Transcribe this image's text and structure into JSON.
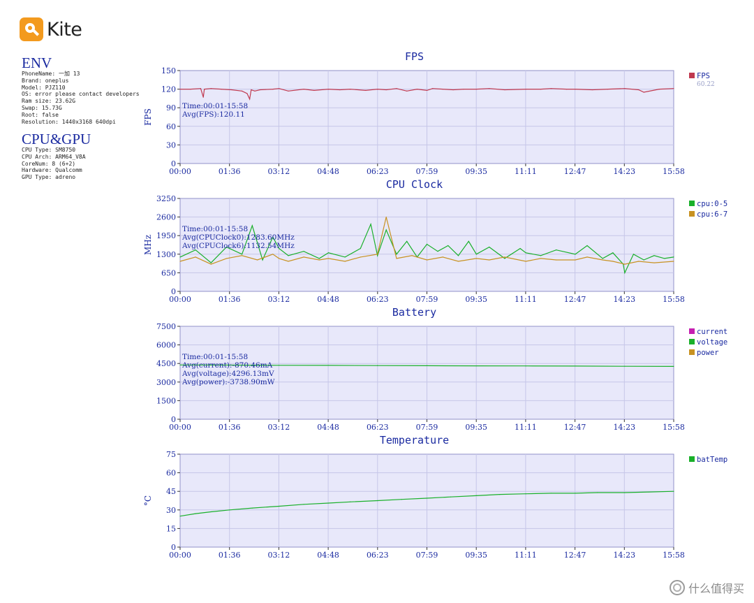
{
  "app": {
    "logo_text": "Kite"
  },
  "env": {
    "title": "ENV",
    "rows": [
      {
        "k": "PhoneName: ",
        "v": "一加 13"
      },
      {
        "k": "Brand: ",
        "v": "oneplus"
      },
      {
        "k": "Model: ",
        "v": "PJZ110"
      },
      {
        "k": "OS: ",
        "v": "error please contact developers"
      },
      {
        "k": "Ram size: ",
        "v": "23.62G"
      },
      {
        "k": "Swap: ",
        "v": "15.73G"
      },
      {
        "k": "Root: ",
        "v": "false"
      },
      {
        "k": "Resolution: ",
        "v": "1440x3168 640dpi"
      }
    ]
  },
  "cpu_gpu": {
    "title": "CPU&GPU",
    "rows": [
      {
        "k": "CPU Type: ",
        "v": "SM8750"
      },
      {
        "k": "CPU Arch: ",
        "v": "ARM64_V8A"
      },
      {
        "k": "CoreNum: ",
        "v": "8 (6+2)"
      },
      {
        "k": "Hardware: ",
        "v": "Qualcomm"
      },
      {
        "k": "GPU Type: ",
        "v": "adreno"
      }
    ]
  },
  "watermark": {
    "text": "什么值得买"
  },
  "colors": {
    "axis_text": "#1a2aa0",
    "plot_bg": "#e8e8fa",
    "grid": "#c6c6e8",
    "fps": "#c0394f",
    "cpu0": "#19b02a",
    "cpu6": "#c89222",
    "current": "#c51fb1",
    "voltage": "#19b02a",
    "power": "#c89222",
    "temp": "#19b02a"
  },
  "chart_data": [
    {
      "type": "line",
      "title": "FPS",
      "ylabel": "FPS",
      "ylim": [
        0,
        150
      ],
      "yticks": [
        "0",
        "30",
        "60",
        "90",
        "120",
        "150"
      ],
      "xticks": [
        "00:00",
        "01:36",
        "03:12",
        "04:48",
        "06:23",
        "07:59",
        "09:35",
        "11:11",
        "12:47",
        "14:23",
        "15:58"
      ],
      "grid": true,
      "legend_position": "right",
      "legend": [
        {
          "name": "FPS",
          "sub": "60.22",
          "color": "#c0394f"
        }
      ],
      "annotations": [
        "Time:00:01-15:58",
        "Avg(FPS):120.11"
      ],
      "series": [
        {
          "name": "FPS",
          "color": "#c0394f",
          "x": [
            "00:00",
            "00:20",
            "00:40",
            "00:45",
            "00:47",
            "01:00",
            "01:20",
            "01:40",
            "02:00",
            "02:10",
            "02:15",
            "02:18",
            "02:25",
            "02:35",
            "03:00",
            "03:12",
            "03:30",
            "04:00",
            "04:20",
            "04:48",
            "05:10",
            "05:30",
            "06:00",
            "06:23",
            "06:40",
            "07:00",
            "07:20",
            "07:40",
            "07:59",
            "08:10",
            "08:30",
            "08:50",
            "09:10",
            "09:35",
            "10:00",
            "10:30",
            "11:11",
            "11:40",
            "12:00",
            "12:30",
            "12:47",
            "13:20",
            "13:50",
            "14:23",
            "14:50",
            "15:00",
            "15:30",
            "15:58"
          ],
          "y": [
            120,
            120,
            121,
            107,
            120,
            121,
            120,
            119,
            117,
            113,
            104,
            119,
            117,
            119,
            120,
            121,
            117,
            120,
            118,
            120,
            119,
            120,
            118,
            120,
            119,
            121,
            117,
            120,
            118,
            121,
            120,
            119,
            120,
            120,
            121,
            119,
            120,
            120,
            121,
            120,
            120,
            119,
            120,
            121,
            119,
            115,
            120,
            121
          ]
        }
      ]
    },
    {
      "type": "line",
      "title": "CPU Clock",
      "ylabel": "MHz",
      "ylim": [
        0,
        3250
      ],
      "yticks": [
        "0",
        "650",
        "1300",
        "1950",
        "2600",
        "3250"
      ],
      "xticks": [
        "00:00",
        "01:36",
        "03:12",
        "04:48",
        "06:23",
        "07:59",
        "09:35",
        "11:11",
        "12:47",
        "14:23",
        "15:58"
      ],
      "grid": true,
      "legend_position": "right",
      "legend": [
        {
          "name": "cpu:0-5",
          "color": "#19b02a"
        },
        {
          "name": "cpu:6-7",
          "color": "#c89222"
        }
      ],
      "annotations": [
        "Time:00:01-15:58",
        "Avg(CPUClock0):1283.60MHz",
        "Avg(CPUClock6):1132.54MHz"
      ],
      "series": [
        {
          "name": "cpu:0-5",
          "color": "#19b02a",
          "x": [
            "00:00",
            "00:30",
            "01:00",
            "01:30",
            "02:00",
            "02:20",
            "02:40",
            "03:00",
            "03:12",
            "03:30",
            "04:00",
            "04:30",
            "04:48",
            "05:20",
            "05:50",
            "06:10",
            "06:23",
            "06:40",
            "07:00",
            "07:20",
            "07:40",
            "07:59",
            "08:20",
            "08:40",
            "09:00",
            "09:20",
            "09:35",
            "10:00",
            "10:30",
            "11:00",
            "11:11",
            "11:40",
            "12:10",
            "12:47",
            "13:10",
            "13:40",
            "14:00",
            "14:20",
            "14:23",
            "14:40",
            "15:00",
            "15:20",
            "15:40",
            "15:58"
          ],
          "y": [
            1200,
            1450,
            1000,
            1550,
            1300,
            2300,
            1100,
            1900,
            1500,
            1250,
            1400,
            1150,
            1350,
            1200,
            1500,
            2350,
            1250,
            2150,
            1300,
            1750,
            1200,
            1650,
            1400,
            1600,
            1250,
            1750,
            1300,
            1550,
            1150,
            1500,
            1350,
            1250,
            1450,
            1300,
            1600,
            1150,
            1350,
            950,
            650,
            1300,
            1100,
            1250,
            1150,
            1200
          ]
        },
        {
          "name": "cpu:6-7",
          "color": "#c89222",
          "x": [
            "00:00",
            "00:30",
            "01:00",
            "01:30",
            "02:00",
            "02:30",
            "03:00",
            "03:12",
            "03:30",
            "04:00",
            "04:30",
            "04:48",
            "05:20",
            "05:50",
            "06:23",
            "06:40",
            "07:00",
            "07:30",
            "07:59",
            "08:30",
            "09:00",
            "09:35",
            "10:00",
            "10:30",
            "11:11",
            "11:40",
            "12:10",
            "12:47",
            "13:10",
            "13:40",
            "14:00",
            "14:23",
            "14:50",
            "15:20",
            "15:58"
          ],
          "y": [
            1050,
            1200,
            950,
            1150,
            1250,
            1100,
            1300,
            1150,
            1050,
            1200,
            1100,
            1150,
            1050,
            1200,
            1300,
            2600,
            1150,
            1250,
            1100,
            1200,
            1050,
            1150,
            1100,
            1200,
            1050,
            1150,
            1100,
            1100,
            1200,
            1100,
            1050,
            950,
            1050,
            1000,
            1050
          ]
        }
      ]
    },
    {
      "type": "line",
      "title": "Battery",
      "ylabel": "",
      "ylim": [
        0,
        7500
      ],
      "yticks": [
        "0",
        "1500",
        "3000",
        "4500",
        "6000",
        "7500"
      ],
      "xticks": [
        "00:00",
        "01:36",
        "03:12",
        "04:48",
        "06:23",
        "07:59",
        "09:35",
        "11:11",
        "12:47",
        "14:23",
        "15:58"
      ],
      "grid": true,
      "legend_position": "right",
      "legend": [
        {
          "name": "current",
          "color": "#c51fb1"
        },
        {
          "name": "voltage",
          "color": "#19b02a"
        },
        {
          "name": "power",
          "color": "#c89222"
        }
      ],
      "annotations": [
        "Time:00:01-15:58",
        "Avg(current):-870.46mA",
        "Avg(voltage):4296.13mV",
        "Avg(power):-3738.90mW"
      ],
      "series": [
        {
          "name": "voltage",
          "color": "#19b02a",
          "x": [
            "00:00",
            "01:36",
            "03:12",
            "04:48",
            "06:23",
            "07:59",
            "09:35",
            "11:11",
            "12:47",
            "14:23",
            "15:58"
          ],
          "y": [
            4380,
            4370,
            4355,
            4345,
            4330,
            4320,
            4310,
            4300,
            4290,
            4275,
            4265
          ]
        }
      ]
    },
    {
      "type": "line",
      "title": "Temperature",
      "ylabel": "°C",
      "ylim": [
        0,
        75
      ],
      "yticks": [
        "0",
        "15",
        "30",
        "45",
        "60",
        "75"
      ],
      "xticks": [
        "00:00",
        "01:36",
        "03:12",
        "04:48",
        "06:23",
        "07:59",
        "09:35",
        "11:11",
        "12:47",
        "14:23",
        "15:58"
      ],
      "grid": true,
      "legend_position": "right",
      "legend": [
        {
          "name": "batTemp",
          "color": "#19b02a"
        }
      ],
      "annotations": [],
      "series": [
        {
          "name": "batTemp",
          "color": "#19b02a",
          "x": [
            "00:00",
            "00:30",
            "01:00",
            "01:36",
            "02:20",
            "03:12",
            "04:00",
            "04:48",
            "05:30",
            "06:23",
            "07:10",
            "07:59",
            "08:45",
            "09:35",
            "10:20",
            "11:11",
            "12:00",
            "12:47",
            "13:30",
            "14:23",
            "15:10",
            "15:58"
          ],
          "y": [
            25,
            27,
            28.5,
            30,
            31.5,
            33,
            34.5,
            35.5,
            36.5,
            37.5,
            38.5,
            39.5,
            40.5,
            41.5,
            42.5,
            43,
            43.5,
            43.5,
            44,
            44,
            44.5,
            45
          ]
        }
      ]
    }
  ]
}
